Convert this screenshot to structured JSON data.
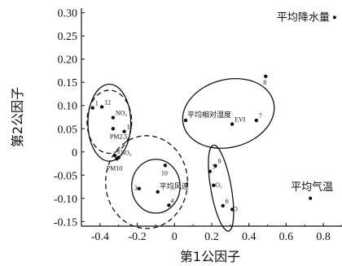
{
  "chart_data": {
    "type": "scatter",
    "xlabel": "第1公因子",
    "ylabel": "第2公因子",
    "xlim": [
      -0.5,
      0.9
    ],
    "ylim": [
      -0.16,
      0.31
    ],
    "xticks": [
      "-0.4",
      "-0.2",
      "0",
      "0.2",
      "0.4",
      "0.6",
      "0.8"
    ],
    "xtick_values": [
      -0.4,
      -0.2,
      0,
      0.2,
      0.4,
      0.6,
      0.8
    ],
    "yticks": [
      "0.30",
      "0.25",
      "0.20",
      "0.15",
      "0.10",
      "0.05",
      "0",
      "-0.05",
      "-0.10",
      "-0.15"
    ],
    "ytick_values": [
      0.3,
      0.25,
      0.2,
      0.15,
      0.1,
      0.05,
      0,
      -0.05,
      -0.1,
      -0.15
    ],
    "grid": false,
    "points": [
      {
        "label": "平均降水量",
        "x": 0.86,
        "y": 0.29,
        "style": "big"
      },
      {
        "label": "8",
        "x": 0.49,
        "y": 0.163,
        "style": "num"
      },
      {
        "label": "7",
        "x": 0.44,
        "y": 0.068,
        "style": "num"
      },
      {
        "label": "EVI",
        "x": 0.31,
        "y": 0.06,
        "style": "num"
      },
      {
        "label": "平均相对湿度",
        "x": 0.06,
        "y": 0.068,
        "style": "cn"
      },
      {
        "label": "1",
        "x": -0.44,
        "y": 0.095,
        "style": "num"
      },
      {
        "label": "12",
        "x": -0.39,
        "y": 0.097,
        "style": "num"
      },
      {
        "label": "NO₂",
        "x": -0.33,
        "y": 0.074,
        "style": "num"
      },
      {
        "label": "11",
        "x": -0.27,
        "y": 0.044,
        "style": "num"
      },
      {
        "label": "PM2.5",
        "x": -0.33,
        "y": 0.05,
        "style": "num"
      },
      {
        "label": "2",
        "x": -0.32,
        "y": -0.008,
        "style": "num"
      },
      {
        "label": "SO₂",
        "x": -0.3,
        "y": -0.012,
        "style": "num"
      },
      {
        "label": "PM10",
        "x": -0.31,
        "y": -0.015,
        "style": "num"
      },
      {
        "label": "10",
        "x": -0.05,
        "y": -0.029,
        "style": "num"
      },
      {
        "label": "3",
        "x": -0.19,
        "y": -0.079,
        "style": "num"
      },
      {
        "label": "平均风速",
        "x": -0.09,
        "y": -0.086,
        "style": "cn"
      },
      {
        "label": "4",
        "x": -0.03,
        "y": -0.115,
        "style": "num"
      },
      {
        "label": "5",
        "x": 0.19,
        "y": -0.042,
        "style": "num"
      },
      {
        "label": "9",
        "x": 0.22,
        "y": -0.03,
        "style": "num"
      },
      {
        "label": "O₃",
        "x": 0.21,
        "y": -0.072,
        "style": "num"
      },
      {
        "label": "6",
        "x": 0.26,
        "y": -0.116,
        "style": "num"
      },
      {
        "label": "O",
        "x": 0.31,
        "y": -0.124,
        "style": "num"
      },
      {
        "label": "平均气温",
        "x": 0.73,
        "y": -0.1,
        "style": "big"
      }
    ],
    "groups": [
      {
        "cx": 0.29,
        "cy": 0.083,
        "rx": 0.25,
        "ry": 0.073,
        "rotate_deg": -15,
        "dashed": false
      },
      {
        "cx": 0.25,
        "cy": -0.078,
        "rx": 0.055,
        "ry": 0.094,
        "rotate_deg": -10,
        "dashed": false
      },
      {
        "cx": -0.35,
        "cy": 0.063,
        "rx": 0.115,
        "ry": 0.083,
        "rotate_deg": 0,
        "dashed": false
      },
      {
        "cx": -0.35,
        "cy": 0.065,
        "rx": 0.12,
        "ry": 0.068,
        "rotate_deg": 0,
        "dashed": true
      },
      {
        "cx": -0.1,
        "cy": -0.074,
        "rx": 0.13,
        "ry": 0.058,
        "rotate_deg": 0,
        "dashed": false
      },
      {
        "cx": -0.15,
        "cy": -0.065,
        "rx": 0.22,
        "ry": 0.1,
        "rotate_deg": 0,
        "dashed": true
      }
    ]
  }
}
